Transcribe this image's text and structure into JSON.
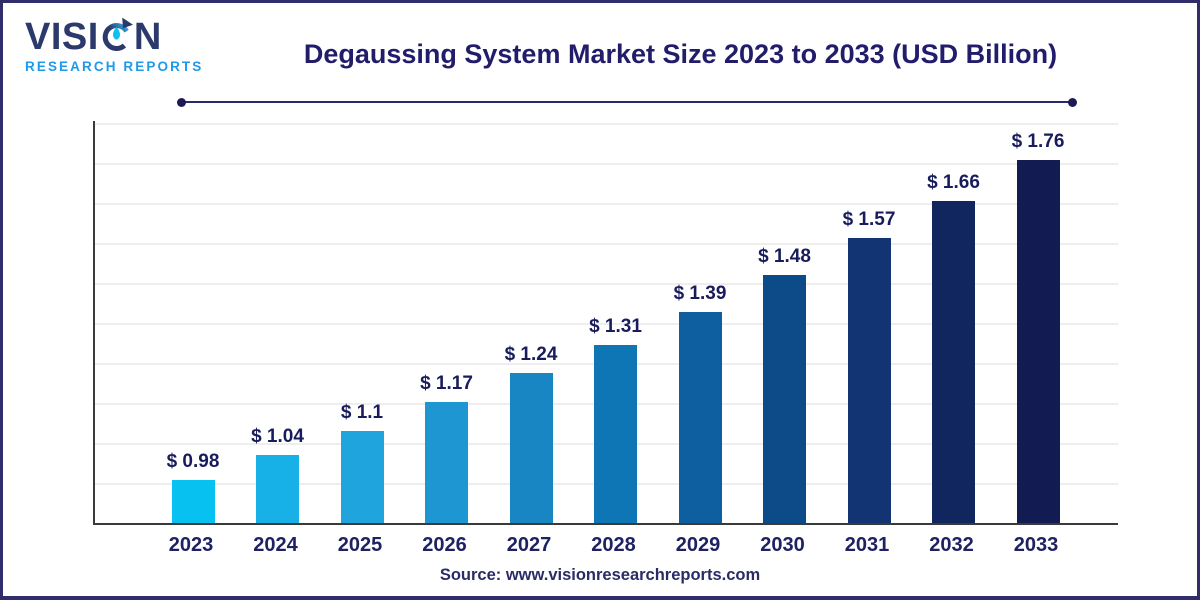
{
  "logo": {
    "brand_pre": "VISI",
    "brand_post": "N",
    "subtitle": "RESEARCH REPORTS"
  },
  "chart_data": {
    "type": "bar",
    "title": "Degaussing System Market Size 2023 to 2033 (USD Billion)",
    "unit": "USD Billion",
    "categories": [
      "2023",
      "2024",
      "2025",
      "2026",
      "2027",
      "2028",
      "2029",
      "2030",
      "2031",
      "2032",
      "2033"
    ],
    "values": [
      0.98,
      1.04,
      1.1,
      1.17,
      1.24,
      1.31,
      1.39,
      1.48,
      1.57,
      1.66,
      1.76
    ],
    "value_labels": [
      "$ 0.98",
      "$ 1.04",
      "$ 1.1",
      "$ 1.17",
      "$ 1.24",
      "$ 1.31",
      "$ 1.39",
      "$ 1.48",
      "$ 1.57",
      "$ 1.66",
      "$ 1.76"
    ],
    "bar_colors": [
      "#07C1F0",
      "#18B1E7",
      "#20A4DD",
      "#1D96D1",
      "#1786C3",
      "#0F76B6",
      "#0D5FA0",
      "#0D4A88",
      "#123472",
      "#11255F",
      "#121C52"
    ],
    "xlabel": "",
    "ylabel": "",
    "ylim": [
      0.875,
      1.86
    ],
    "grid": "horizontal",
    "legend": "none",
    "source": "Source: www.visionresearchreports.com"
  },
  "colors": {
    "title_navy": "#221D6B",
    "label_navy": "#1E2162",
    "grid": "#EEEEEE",
    "axis": "#3A3A3A",
    "frame_border": "#312D6B",
    "logo_navy": "#2B3A6B",
    "logo_blue": "#1E9AEA",
    "bar_first": "#07C1F0",
    "bar_last": "#121C52"
  }
}
